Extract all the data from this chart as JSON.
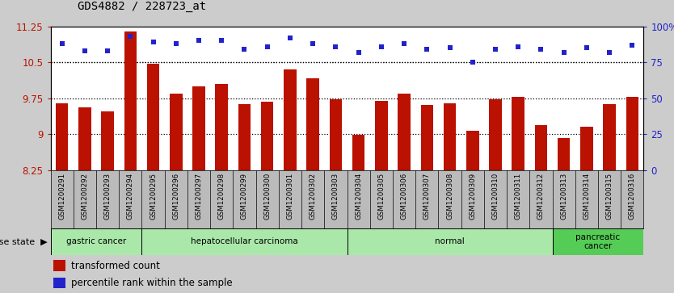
{
  "title": "GDS4882 / 228723_at",
  "samples": [
    "GSM1200291",
    "GSM1200292",
    "GSM1200293",
    "GSM1200294",
    "GSM1200295",
    "GSM1200296",
    "GSM1200297",
    "GSM1200298",
    "GSM1200299",
    "GSM1200300",
    "GSM1200301",
    "GSM1200302",
    "GSM1200303",
    "GSM1200304",
    "GSM1200305",
    "GSM1200306",
    "GSM1200307",
    "GSM1200308",
    "GSM1200309",
    "GSM1200310",
    "GSM1200311",
    "GSM1200312",
    "GSM1200313",
    "GSM1200314",
    "GSM1200315",
    "GSM1200316"
  ],
  "transformed_count": [
    9.65,
    9.55,
    9.48,
    11.15,
    10.47,
    9.85,
    10.0,
    10.05,
    9.62,
    9.68,
    10.35,
    10.17,
    9.73,
    8.98,
    9.7,
    9.84,
    9.61,
    9.65,
    9.07,
    9.72,
    9.77,
    9.18,
    8.92,
    9.15,
    9.62,
    9.78
  ],
  "percentile_rank": [
    88,
    83,
    83,
    93,
    89,
    88,
    90,
    90,
    84,
    86,
    92,
    88,
    86,
    82,
    86,
    88,
    84,
    85,
    75,
    84,
    86,
    84,
    82,
    85,
    82,
    87
  ],
  "disease_groups": [
    {
      "label": "gastric cancer",
      "start": 0,
      "end": 3,
      "color": "#aae8aa"
    },
    {
      "label": "hepatocellular carcinoma",
      "start": 4,
      "end": 12,
      "color": "#aae8aa"
    },
    {
      "label": "normal",
      "start": 13,
      "end": 21,
      "color": "#aae8aa"
    },
    {
      "label": "pancreatic\ncancer",
      "start": 22,
      "end": 25,
      "color": "#55cc55"
    }
  ],
  "bar_color": "#bb1100",
  "dot_color": "#2222cc",
  "ylim_left": [
    8.25,
    11.25
  ],
  "ylim_right": [
    0,
    100
  ],
  "yticks_left": [
    8.25,
    9.0,
    9.75,
    10.5,
    11.25
  ],
  "yticks_right": [
    0,
    25,
    50,
    75,
    100
  ],
  "ytick_labels_right": [
    "0",
    "25",
    "50",
    "75",
    "100%"
  ],
  "gridlines": [
    9.0,
    9.75,
    10.5
  ],
  "bg_color": "#cccccc",
  "plot_bg": "#ffffff",
  "xtick_bg": "#bbbbbb"
}
